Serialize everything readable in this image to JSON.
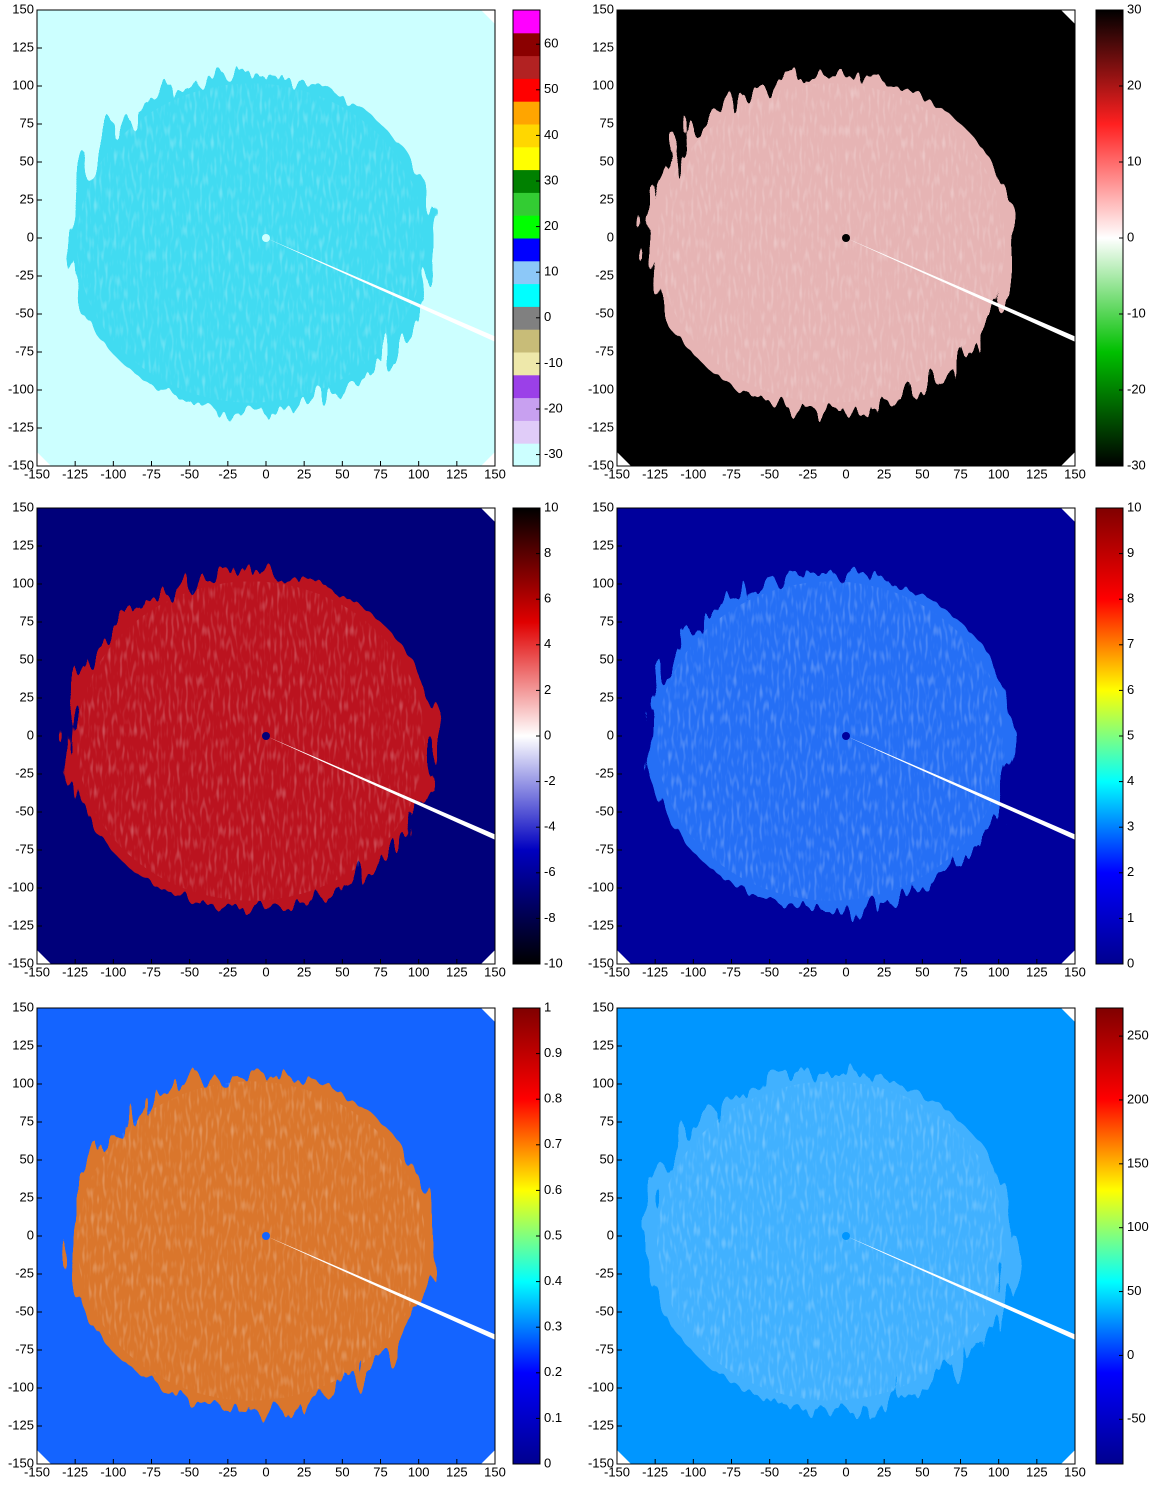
{
  "chart_data": [
    {
      "type": "ppi",
      "xlim": [
        -150,
        150
      ],
      "ylim": [
        -150,
        150
      ],
      "xticks": [
        -150,
        -125,
        -100,
        -75,
        -50,
        -25,
        0,
        25,
        50,
        75,
        100,
        125,
        150
      ],
      "yticks": [
        -150,
        -125,
        -100,
        -75,
        -50,
        -25,
        0,
        25,
        50,
        75,
        100,
        125,
        150
      ],
      "background_color": "#ccffff",
      "echo_color": "#30d8f0",
      "colorbar": {
        "lim": [
          -32.5,
          67.5
        ],
        "ticks": [
          -30,
          -20,
          -10,
          0,
          10,
          20,
          30,
          40,
          50,
          60
        ],
        "discrete": true,
        "colors": [
          "#ccffff",
          "#e0ccf8",
          "#c8a0f0",
          "#9b40e8",
          "#eee8aa",
          "#c8bc78",
          "#808080",
          "#00ffff",
          "#8cc8f8",
          "#0000ff",
          "#00ff00",
          "#33cc33",
          "#008000",
          "#ffff00",
          "#ffd700",
          "#ffa500",
          "#ff0000",
          "#b22222",
          "#8b0000",
          "#ff00ff"
        ]
      }
    },
    {
      "type": "ppi",
      "xlim": [
        -150,
        150
      ],
      "ylim": [
        -150,
        150
      ],
      "xticks": [
        -150,
        -125,
        -100,
        -75,
        -50,
        -25,
        0,
        25,
        50,
        75,
        100,
        125,
        150
      ],
      "yticks": [
        -150,
        -125,
        -100,
        -75,
        -50,
        -25,
        0,
        25,
        50,
        75,
        100,
        125,
        150
      ],
      "background_color": "#000000",
      "echo_color": "#ffc8c8",
      "colorbar": {
        "lim": [
          -30,
          30
        ],
        "ticks": [
          -30,
          -20,
          -10,
          0,
          10,
          20,
          30
        ],
        "discrete": false,
        "colors": [
          "#000000",
          "#00c000",
          "#ffffff",
          "#ff2020",
          "#000000"
        ]
      }
    },
    {
      "type": "ppi",
      "xlim": [
        -150,
        150
      ],
      "ylim": [
        -150,
        150
      ],
      "xticks": [
        -150,
        -125,
        -100,
        -75,
        -50,
        -25,
        0,
        25,
        50,
        75,
        100,
        125,
        150
      ],
      "yticks": [
        -150,
        -125,
        -100,
        -75,
        -50,
        -25,
        0,
        25,
        50,
        75,
        100,
        125,
        150
      ],
      "background_color": "#00007a",
      "echo_color": "#d01818",
      "colorbar": {
        "lim": [
          -10,
          10
        ],
        "ticks": [
          -10,
          -8,
          -6,
          -4,
          -2,
          0,
          2,
          4,
          6,
          8,
          10
        ],
        "discrete": false,
        "colors": [
          "#000000",
          "#0000c0",
          "#ffffff",
          "#e00000",
          "#000000"
        ]
      }
    },
    {
      "type": "ppi",
      "xlim": [
        -150,
        150
      ],
      "ylim": [
        -150,
        150
      ],
      "xticks": [
        -150,
        -125,
        -100,
        -75,
        -50,
        -25,
        0,
        25,
        50,
        75,
        100,
        125,
        150
      ],
      "yticks": [
        -150,
        -125,
        -100,
        -75,
        -50,
        -25,
        0,
        25,
        50,
        75,
        100,
        125,
        150
      ],
      "background_color": "#00009c",
      "echo_color": "#2a7cff",
      "colorbar": {
        "lim": [
          0,
          10
        ],
        "ticks": [
          0,
          1,
          2,
          3,
          4,
          5,
          6,
          7,
          8,
          9,
          10
        ],
        "discrete": false,
        "colors": [
          "#00008f",
          "#0000ff",
          "#00ffff",
          "#ffff00",
          "#ff0000",
          "#800000"
        ]
      }
    },
    {
      "type": "ppi",
      "xlim": [
        -150,
        150
      ],
      "ylim": [
        -150,
        150
      ],
      "xticks": [
        -150,
        -125,
        -100,
        -75,
        -50,
        -25,
        0,
        25,
        50,
        75,
        100,
        125,
        150
      ],
      "yticks": [
        -150,
        -125,
        -100,
        -75,
        -50,
        -25,
        0,
        25,
        50,
        75,
        100,
        125,
        150
      ],
      "background_color": "#1464ff",
      "echo_color": "#f07818",
      "colorbar": {
        "lim": [
          0,
          1
        ],
        "ticks": [
          0,
          0.1,
          0.2,
          0.3,
          0.4,
          0.5,
          0.6,
          0.7,
          0.8,
          0.9,
          1
        ],
        "discrete": false,
        "colors": [
          "#00008f",
          "#0000ff",
          "#00ffff",
          "#ffff00",
          "#ff0000",
          "#800000"
        ]
      }
    },
    {
      "type": "ppi",
      "xlim": [
        -150,
        150
      ],
      "ylim": [
        -150,
        150
      ],
      "xticks": [
        -150,
        -125,
        -100,
        -75,
        -50,
        -25,
        0,
        25,
        50,
        75,
        100,
        125,
        150
      ],
      "yticks": [
        -150,
        -125,
        -100,
        -75,
        -50,
        -25,
        0,
        25,
        50,
        75,
        100,
        125,
        150
      ],
      "background_color": "#0096ff",
      "echo_color": "#48b4ff",
      "colorbar": {
        "lim": [
          -85,
          272
        ],
        "ticks": [
          -50,
          0,
          50,
          100,
          150,
          200,
          250
        ],
        "discrete": false,
        "colors": [
          "#00008f",
          "#0000ff",
          "#00ffff",
          "#ffff00",
          "#ff0000",
          "#800000"
        ]
      }
    }
  ]
}
